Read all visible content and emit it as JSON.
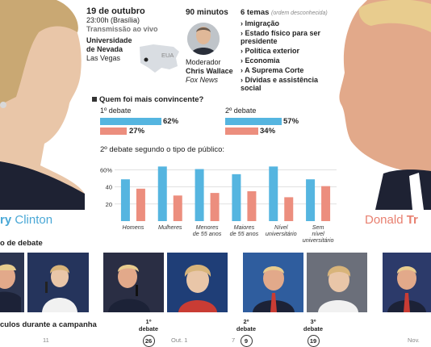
{
  "event": {
    "date": "19 de outubro",
    "time": "23:00h (Brasília)",
    "broadcast": "Transmissão ao vivo",
    "venue": "Universidade de Nevada",
    "city": "Las Vegas",
    "map_label": "EUA"
  },
  "duration": "90 minutos",
  "moderator": {
    "role": "Moderador",
    "name": "Chris Wallace",
    "network": "Fox News"
  },
  "topics": {
    "count_label": "6 temas",
    "note": "(ordem desconhecida)",
    "items": [
      "Imigração",
      "Estado físico para ser presidente",
      "Política exterior",
      "Economia",
      "A Suprema Corte",
      "Dívidas e assistência social"
    ]
  },
  "names": {
    "clinton_partial": "ry Clinton",
    "clinton_first_partial": "ry",
    "clinton_last": "Clinton",
    "trump_first": "Donald",
    "trump_partial": "Tr"
  },
  "poll": {
    "question": "Quem foi mais convincente?",
    "debate1_label": "1º debate",
    "debate2_label": "2º debate",
    "debate1": {
      "clinton": 62,
      "trump": 27
    },
    "debate2": {
      "clinton": 57,
      "trump": 34
    },
    "debate1_clinton_label": "62%",
    "debate1_trump_label": "27%",
    "debate2_clinton_label": "57%",
    "debate2_trump_label": "34%"
  },
  "chart_data": {
    "type": "bar",
    "title": "2º debate segundo o tipo de público:",
    "categories": [
      "Homens",
      "Mulheres",
      "Menores de 55 anos",
      "Maiores de 55 anos",
      "Nível universitário",
      "Sem nível universitário"
    ],
    "series": [
      {
        "name": "Clinton",
        "color": "#55b5e0",
        "values": [
          49,
          64,
          61,
          55,
          64,
          49
        ]
      },
      {
        "name": "Trump",
        "color": "#ec8e7e",
        "values": [
          38,
          30,
          33,
          35,
          28,
          41
        ]
      }
    ],
    "yticks": [
      "20",
      "40",
      "60%"
    ],
    "ylim": [
      0,
      70
    ],
    "grid": true
  },
  "bottom": {
    "debate_section_partial": "o de debate",
    "campaign_partial": "culos durante a campanha",
    "timeline": [
      {
        "label": "1º debate",
        "day": "26"
      },
      {
        "label": "2º debate",
        "day": "9"
      },
      {
        "label": "3º debate",
        "day": "19"
      }
    ],
    "axis_labels": [
      "11",
      "Out. 1",
      "7",
      "Nov."
    ]
  },
  "colors": {
    "clinton": "#4aa8d6",
    "trump": "#e88070"
  }
}
